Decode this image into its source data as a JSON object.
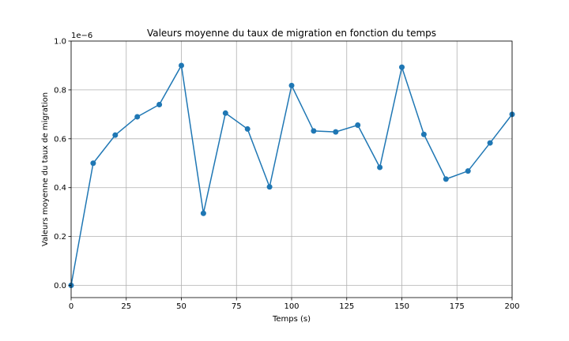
{
  "chart_data": {
    "type": "line",
    "title": "Valeurs moyenne du taux de migration en fonction du temps",
    "xlabel": "Temps (s)",
    "ylabel": "Valeurs moyenne du taux de migration",
    "y_offset_label": "1e−6",
    "xlim": [
      0,
      200
    ],
    "ylim": [
      -0.05,
      1.0
    ],
    "x_ticks": [
      0,
      25,
      50,
      75,
      100,
      125,
      150,
      175,
      200
    ],
    "y_ticks": [
      0.0,
      0.2,
      0.4,
      0.6,
      0.8,
      1.0
    ],
    "y_tick_labels": [
      "0.0",
      "0.2",
      "0.4",
      "0.6",
      "0.8",
      "1.0"
    ],
    "grid": true,
    "color": "#1f77b4",
    "series": [
      {
        "x": [
          0,
          10,
          20,
          30,
          40,
          50,
          60,
          70,
          80,
          90,
          100,
          110,
          120,
          130,
          140,
          150,
          160,
          170,
          180,
          190,
          200
        ],
        "values": [
          0.0,
          0.5,
          0.615,
          0.69,
          0.74,
          0.9,
          0.295,
          0.705,
          0.64,
          0.403,
          0.818,
          0.632,
          0.628,
          0.656,
          0.483,
          0.893,
          0.618,
          0.435,
          0.468,
          0.583,
          0.7
        ]
      }
    ]
  }
}
